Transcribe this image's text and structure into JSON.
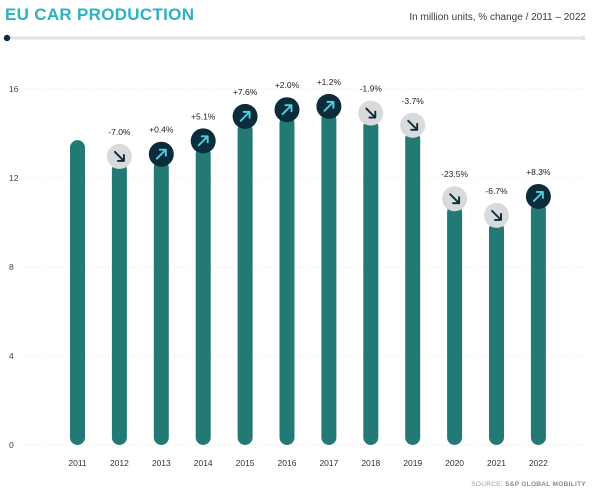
{
  "header": {
    "title": "EU CAR PRODUCTION",
    "subtitle": "In million units, % change / 2011 – 2022",
    "source_prefix": "SOURCE: ",
    "source_name": "S&P GLOBAL MOBILITY"
  },
  "colors": {
    "title": "#2bb3c0",
    "bar": "#237a74",
    "up_circle": "#0b2c3b",
    "up_arrow": "#4fd0dc",
    "down_circle": "#d9dadb",
    "down_arrow": "#0b2c3b",
    "grid": "#e8e8e8",
    "timeline": "#e3e3e3"
  },
  "chart_data": {
    "type": "bar",
    "categories": [
      "2011",
      "2012",
      "2013",
      "2014",
      "2015",
      "2016",
      "2017",
      "2018",
      "2019",
      "2020",
      "2021",
      "2022"
    ],
    "values": [
      13.7,
      12.7,
      12.8,
      13.4,
      14.5,
      14.8,
      14.95,
      14.65,
      14.1,
      10.8,
      10.05,
      10.9
    ],
    "change_labels": [
      "",
      "-7.0%",
      "+0.4%",
      "+5.1%",
      "+7.6%",
      "+2.0%",
      "+1.2%",
      "-1.9%",
      "-3.7%",
      "-23.5%",
      "-6.7%",
      "+8.3%"
    ],
    "change_direction": [
      "",
      "down",
      "up",
      "up",
      "up",
      "up",
      "up",
      "down",
      "down",
      "down",
      "down",
      "up"
    ],
    "yticks": [
      0,
      4,
      8,
      12,
      16
    ],
    "ylim": [
      0,
      17.2
    ],
    "grid": true,
    "gridline_style": "dotted"
  }
}
